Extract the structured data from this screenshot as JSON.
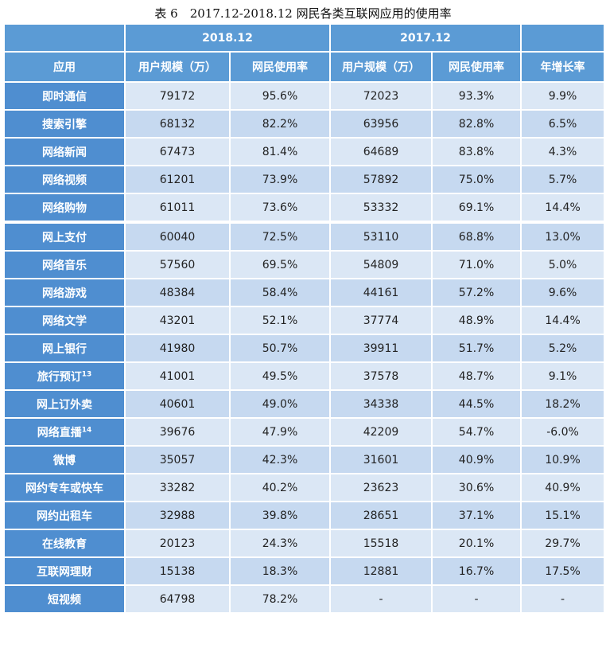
{
  "title": "表 6　2017.12-2018.12 网民各类互联网应用的使用率",
  "header": {
    "year_2018": "2018.12",
    "year_2017": "2017.12",
    "col_app": "应用",
    "col_users_2018": "用户规模（万）",
    "col_rate_2018": "网民使用率",
    "col_users_2017": "用户规模（万）",
    "col_rate_2017": "网民使用率",
    "col_growth": "年增长率"
  },
  "rows": [
    {
      "app": "即时通信",
      "sup": "",
      "u18": "79172",
      "r18": "95.6%",
      "u17": "72023",
      "r17": "93.3%",
      "g": "9.9%"
    },
    {
      "app": "搜索引擎",
      "sup": "",
      "u18": "68132",
      "r18": "82.2%",
      "u17": "63956",
      "r17": "82.8%",
      "g": "6.5%"
    },
    {
      "app": "网络新闻",
      "sup": "",
      "u18": "67473",
      "r18": "81.4%",
      "u17": "64689",
      "r17": "83.8%",
      "g": "4.3%"
    },
    {
      "app": "网络视频",
      "sup": "",
      "u18": "61201",
      "r18": "73.9%",
      "u17": "57892",
      "r17": "75.0%",
      "g": "5.7%"
    },
    {
      "app": "网络购物",
      "sup": "",
      "u18": "61011",
      "r18": "73.6%",
      "u17": "53332",
      "r17": "69.1%",
      "g": "14.4%"
    },
    {
      "app": "网上支付",
      "sup": "",
      "u18": "60040",
      "r18": "72.5%",
      "u17": "53110",
      "r17": "68.8%",
      "g": "13.0%"
    },
    {
      "app": "网络音乐",
      "sup": "",
      "u18": "57560",
      "r18": "69.5%",
      "u17": "54809",
      "r17": "71.0%",
      "g": "5.0%"
    },
    {
      "app": "网络游戏",
      "sup": "",
      "u18": "48384",
      "r18": "58.4%",
      "u17": "44161",
      "r17": "57.2%",
      "g": "9.6%"
    },
    {
      "app": "网络文学",
      "sup": "",
      "u18": "43201",
      "r18": "52.1%",
      "u17": "37774",
      "r17": "48.9%",
      "g": "14.4%"
    },
    {
      "app": "网上银行",
      "sup": "",
      "u18": "41980",
      "r18": "50.7%",
      "u17": "39911",
      "r17": "51.7%",
      "g": "5.2%"
    },
    {
      "app": "旅行预订",
      "sup": "13",
      "u18": "41001",
      "r18": "49.5%",
      "u17": "37578",
      "r17": "48.7%",
      "g": "9.1%"
    },
    {
      "app": "网上订外卖",
      "sup": "",
      "u18": "40601",
      "r18": "49.0%",
      "u17": "34338",
      "r17": "44.5%",
      "g": "18.2%"
    },
    {
      "app": "网络直播",
      "sup": "14",
      "u18": "39676",
      "r18": "47.9%",
      "u17": "42209",
      "r17": "54.7%",
      "g": "-6.0%"
    },
    {
      "app": "微博",
      "sup": "",
      "u18": "35057",
      "r18": "42.3%",
      "u17": "31601",
      "r17": "40.9%",
      "g": "10.9%"
    },
    {
      "app": "网约专车或快车",
      "sup": "",
      "u18": "33282",
      "r18": "40.2%",
      "u17": "23623",
      "r17": "30.6%",
      "g": "40.9%"
    },
    {
      "app": "网约出租车",
      "sup": "",
      "u18": "32988",
      "r18": "39.8%",
      "u17": "28651",
      "r17": "37.1%",
      "g": "15.1%"
    },
    {
      "app": "在线教育",
      "sup": "",
      "u18": "20123",
      "r18": "24.3%",
      "u17": "15518",
      "r17": "20.1%",
      "g": "29.7%"
    },
    {
      "app": "互联网理财",
      "sup": "",
      "u18": "15138",
      "r18": "18.3%",
      "u17": "12881",
      "r17": "16.7%",
      "g": "17.5%"
    },
    {
      "app": "短视频",
      "sup": "",
      "u18": "64798",
      "r18": "78.2%",
      "u17": "-",
      "r17": "-",
      "g": "-"
    }
  ]
}
